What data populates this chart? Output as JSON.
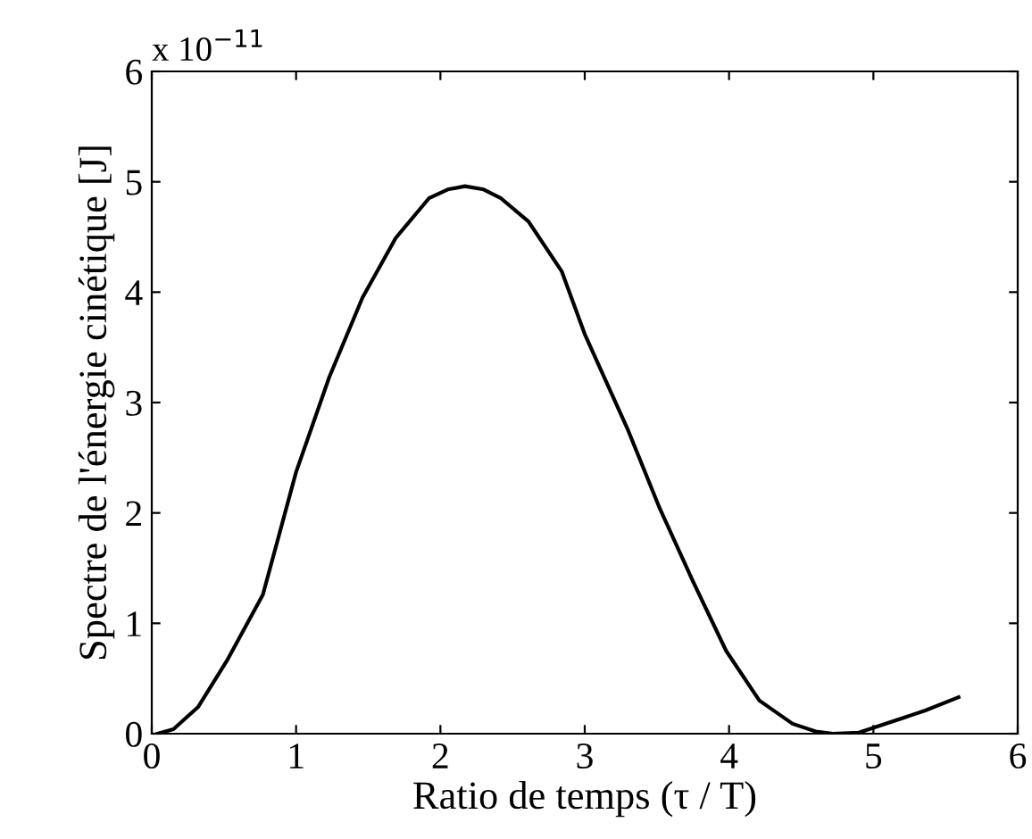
{
  "chart_data": {
    "type": "line",
    "xlabel": "Ratio de temps (τ / T)",
    "ylabel": "Spectre de l'énergie cinétique [J]",
    "annotations": [
      "x 10$^{−11}$"
    ],
    "x": [
      0.04,
      0.15,
      0.32,
      0.52,
      0.77,
      1.0,
      1.23,
      1.46,
      1.69,
      1.92,
      2.05,
      2.17,
      2.3,
      2.42,
      2.61,
      2.84,
      3.0,
      3.3,
      3.52,
      3.75,
      3.98,
      4.21,
      4.44,
      4.6,
      4.72,
      4.9,
      5.04,
      5.36,
      5.59
    ],
    "series": [
      {
        "color": "#000000",
        "values": [
          0,
          0.04,
          0.24,
          0.66,
          1.26,
          2.37,
          3.23,
          3.95,
          4.49,
          4.85,
          4.93,
          4.96,
          4.93,
          4.85,
          4.64,
          4.19,
          3.62,
          2.75,
          2.04,
          1.38,
          0.75,
          0.3,
          0.09,
          0.02,
          0,
          0.01,
          0.07,
          0.21,
          0.33
        ]
      }
    ],
    "xlim": [
      0,
      6
    ],
    "ylim": [
      0,
      6
    ],
    "xticks": [
      0,
      1,
      2,
      3,
      4,
      5,
      6
    ],
    "yticks": [
      0,
      1,
      2,
      3,
      4,
      5,
      6
    ],
    "grid": false,
    "legend": false,
    "marker": "none",
    "line_style": "solid"
  }
}
